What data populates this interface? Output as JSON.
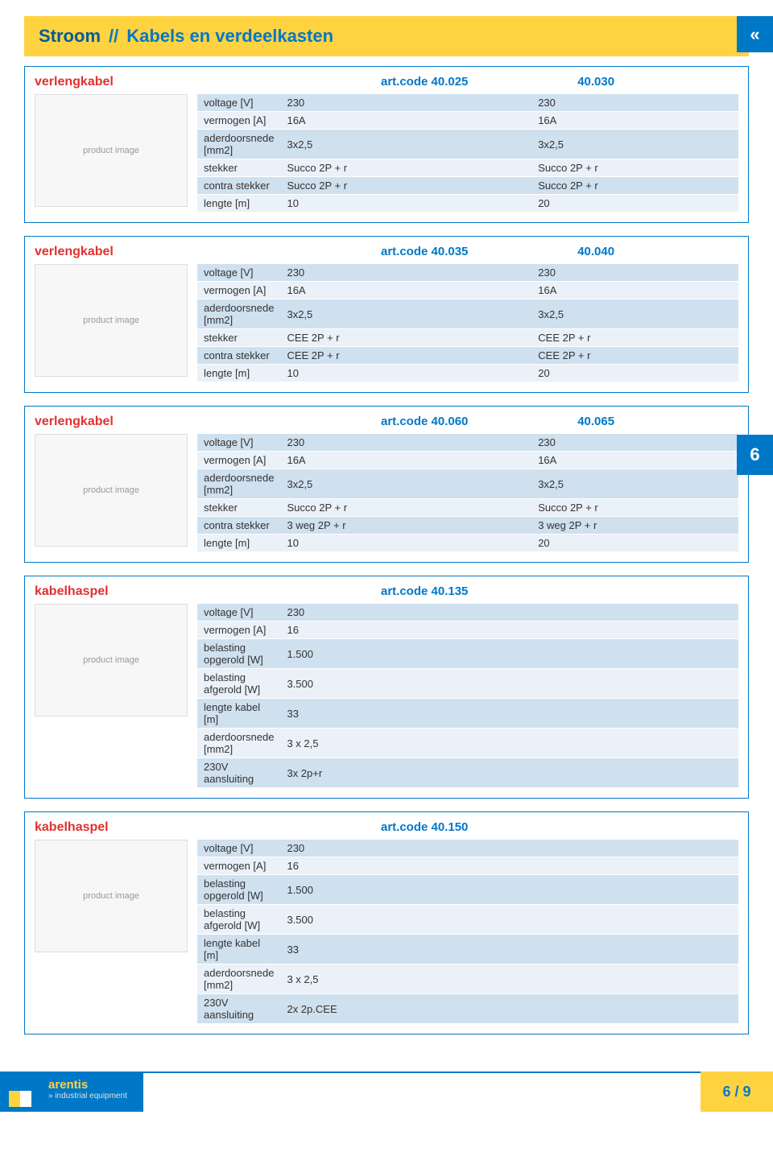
{
  "header": {
    "category": "Stroom",
    "separator": "//",
    "subcategory": "Kabels en verdeelkasten"
  },
  "nav_icon": "«",
  "side_tab": "6",
  "footer": {
    "brand": "arentis",
    "tagline": "» industrial equipment",
    "page": "6 / 9"
  },
  "image_placeholder": "product image",
  "products": [
    {
      "title": "verlengkabel",
      "codes": [
        "art.code 40.025",
        "40.030"
      ],
      "rows": [
        {
          "label": "voltage [V]",
          "vals": [
            "230",
            "230"
          ]
        },
        {
          "label": "vermogen [A]",
          "vals": [
            "16A",
            "16A"
          ]
        },
        {
          "label": "aderdoorsnede [mm2]",
          "vals": [
            "3x2,5",
            "3x2,5"
          ]
        },
        {
          "label": "stekker",
          "vals": [
            "Succo 2P + r",
            "Succo 2P + r"
          ]
        },
        {
          "label": "contra stekker",
          "vals": [
            "Succo 2P + r",
            "Succo 2P + r"
          ]
        },
        {
          "label": "lengte [m]",
          "vals": [
            "10",
            "20"
          ]
        }
      ]
    },
    {
      "title": "verlengkabel",
      "codes": [
        "art.code 40.035",
        "40.040"
      ],
      "rows": [
        {
          "label": "voltage [V]",
          "vals": [
            "230",
            "230"
          ]
        },
        {
          "label": "vermogen [A]",
          "vals": [
            "16A",
            "16A"
          ]
        },
        {
          "label": "aderdoorsnede [mm2]",
          "vals": [
            "3x2,5",
            "3x2,5"
          ]
        },
        {
          "label": "stekker",
          "vals": [
            "CEE 2P + r",
            "CEE 2P + r"
          ]
        },
        {
          "label": "contra stekker",
          "vals": [
            "CEE 2P + r",
            "CEE 2P + r"
          ]
        },
        {
          "label": "lengte [m]",
          "vals": [
            "10",
            "20"
          ]
        }
      ]
    },
    {
      "title": "verlengkabel",
      "codes": [
        "art.code 40.060",
        "40.065"
      ],
      "rows": [
        {
          "label": "voltage [V]",
          "vals": [
            "230",
            "230"
          ]
        },
        {
          "label": "vermogen [A]",
          "vals": [
            "16A",
            "16A"
          ]
        },
        {
          "label": "aderdoorsnede [mm2]",
          "vals": [
            "3x2,5",
            "3x2,5"
          ]
        },
        {
          "label": "stekker",
          "vals": [
            "Succo 2P + r",
            "Succo 2P + r"
          ]
        },
        {
          "label": "contra stekker",
          "vals": [
            "3 weg 2P + r",
            "3 weg 2P + r"
          ]
        },
        {
          "label": "lengte [m]",
          "vals": [
            "10",
            "20"
          ]
        }
      ]
    },
    {
      "title": "kabelhaspel",
      "codes": [
        "art.code 40.135"
      ],
      "rows": [
        {
          "label": "voltage [V]",
          "vals": [
            "230"
          ]
        },
        {
          "label": "vermogen [A]",
          "vals": [
            "16"
          ]
        },
        {
          "label": "belasting opgerold [W]",
          "vals": [
            "1.500"
          ]
        },
        {
          "label": "belasting afgerold [W]",
          "vals": [
            "3.500"
          ]
        },
        {
          "label": "lengte kabel [m]",
          "vals": [
            "33"
          ]
        },
        {
          "label": "aderdoorsnede [mm2]",
          "vals": [
            "3 x 2,5"
          ]
        },
        {
          "label": "230V aansluiting",
          "vals": [
            "3x 2p+r"
          ]
        }
      ]
    },
    {
      "title": "kabelhaspel",
      "codes": [
        "art.code 40.150"
      ],
      "rows": [
        {
          "label": "voltage [V]",
          "vals": [
            "230"
          ]
        },
        {
          "label": "vermogen [A]",
          "vals": [
            "16"
          ]
        },
        {
          "label": "belasting opgerold [W]",
          "vals": [
            "1.500"
          ]
        },
        {
          "label": "belasting afgerold [W]",
          "vals": [
            "3.500"
          ]
        },
        {
          "label": "lengte kabel [m]",
          "vals": [
            "33"
          ]
        },
        {
          "label": "aderdoorsnede [mm2]",
          "vals": [
            "3 x 2,5"
          ]
        },
        {
          "label": "230V aansluiting",
          "vals": [
            "2x 2p.CEE"
          ]
        }
      ]
    }
  ],
  "colors": {
    "header_bg": "#ffd340",
    "brand_blue": "#0078c8",
    "title_red": "#e03030",
    "row_dark": "#cfe0ef",
    "row_light": "#eaf1f8"
  }
}
